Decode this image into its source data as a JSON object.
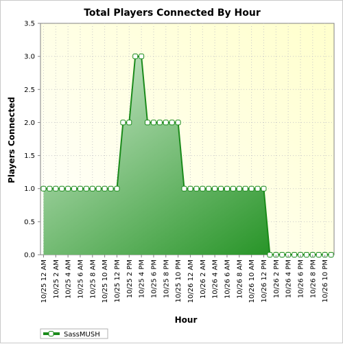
{
  "chart_data": {
    "type": "area",
    "title": "Total Players Connected By Hour",
    "xlabel": "Hour",
    "ylabel": "Players Connected",
    "ylim": [
      0,
      3.5
    ],
    "yticks": [
      "0.0",
      "0.5",
      "1.0",
      "1.5",
      "2.0",
      "2.5",
      "3.0",
      "3.5"
    ],
    "grid": true,
    "legend_position": "bottom-left",
    "x_tick_labels": [
      "10/25 12 AM",
      "10/25 2 AM",
      "10/25 4 AM",
      "10/25 6 AM",
      "10/25 8 AM",
      "10/25 10 AM",
      "10/25 12 PM",
      "10/25 2 PM",
      "10/25 4 PM",
      "10/25 6 PM",
      "10/25 8 PM",
      "10/25 10 PM",
      "10/26 12 AM",
      "10/26 2 AM",
      "10/26 4 AM",
      "10/26 6 AM",
      "10/26 8 AM",
      "10/26 10 AM",
      "10/26 12 PM",
      "10/26 2 PM",
      "10/26 4 PM",
      "10/26 6 PM",
      "10/26 8 PM",
      "10/26 10 PM"
    ],
    "series": [
      {
        "name": "SassMUSH",
        "color": "#1a8a1a",
        "values": [
          1,
          1,
          1,
          1,
          1,
          1,
          1,
          1,
          1,
          1,
          1,
          1,
          1,
          2,
          2,
          3,
          3,
          2,
          2,
          2,
          2,
          2,
          2,
          1,
          1,
          1,
          1,
          1,
          1,
          1,
          1,
          1,
          1,
          1,
          1,
          1,
          1,
          0,
          0,
          0,
          0,
          0,
          0,
          0,
          0,
          0,
          0,
          0
        ]
      }
    ]
  }
}
